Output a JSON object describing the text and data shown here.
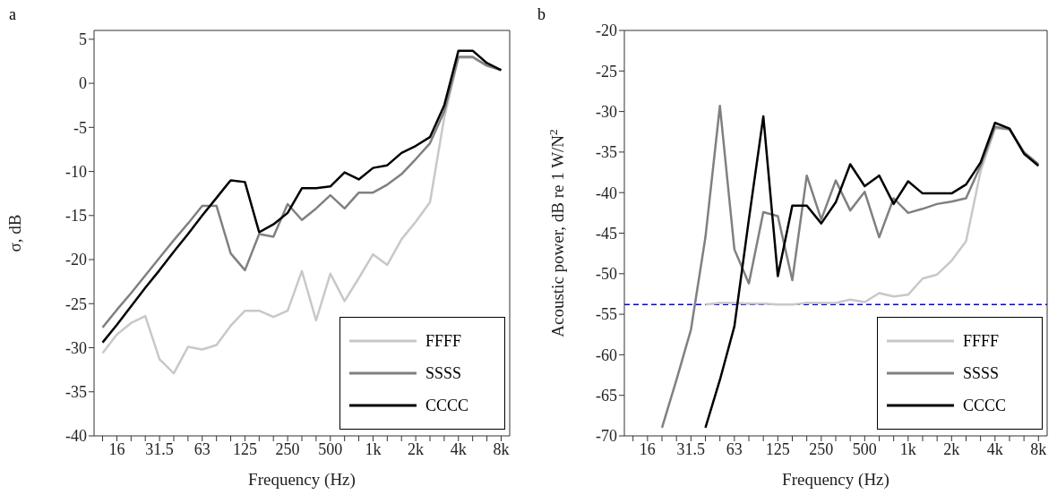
{
  "chart_data": [
    {
      "type": "line",
      "title": "a",
      "xlabel": "Frequency (Hz)",
      "ylabel": "σ, dB",
      "categories": [
        null,
        "16",
        null,
        null,
        "31.5",
        null,
        null,
        "63",
        null,
        null,
        "125",
        null,
        null,
        "250",
        null,
        null,
        "500",
        null,
        null,
        "1k",
        null,
        null,
        "2k",
        null,
        null,
        "4k",
        null,
        null,
        "8k"
      ],
      "ylim": [
        -40,
        6
      ],
      "yticks": [
        -40,
        -35,
        -30,
        -25,
        -20,
        -15,
        -10,
        -5,
        0,
        5
      ],
      "legend": "bottom right",
      "line_style": "solid",
      "marker": "none",
      "series": [
        {
          "name": "FFFF",
          "color": "#c8c8c8",
          "values": [
            -30.6,
            -28.5,
            -27.2,
            -26.4,
            -31.3,
            -32.9,
            -29.9,
            -30.2,
            -29.7,
            -27.5,
            -25.8,
            -25.8,
            -26.5,
            -25.8,
            -21.3,
            -26.9,
            -21.6,
            -24.7,
            -22.1,
            -19.4,
            -20.6,
            -17.7,
            -15.7,
            -13.5,
            -3.9,
            2.9,
            2.9,
            2.0,
            1.5
          ]
        },
        {
          "name": "SSSS",
          "color": "#808080",
          "values": [
            -27.7,
            -25.7,
            -23.8,
            -21.8,
            -19.8,
            -17.8,
            -15.9,
            -13.9,
            -13.9,
            -19.3,
            -21.2,
            -17.1,
            -17.4,
            -13.7,
            -15.5,
            -14.2,
            -12.7,
            -14.2,
            -12.4,
            -12.4,
            -11.5,
            -10.3,
            -8.6,
            -6.8,
            -3.2,
            3.0,
            3.0,
            2.0,
            1.5
          ]
        },
        {
          "name": "CCCC",
          "color": "#000000",
          "values": [
            -29.4,
            -27.4,
            -25.3,
            -23.2,
            -21.2,
            -19.1,
            -17.1,
            -15.0,
            -13.0,
            -11.0,
            -11.2,
            -16.9,
            -16.0,
            -14.7,
            -11.9,
            -11.9,
            -11.7,
            -10.1,
            -10.9,
            -9.6,
            -9.3,
            -7.9,
            -7.1,
            -6.1,
            -2.5,
            3.7,
            3.7,
            2.3,
            1.5
          ]
        }
      ]
    },
    {
      "type": "line",
      "title": "b",
      "xlabel": "Frequency (Hz)",
      "ylabel": "Acoustic power, dB re 1 W/N$^{2}$",
      "categories": [
        null,
        "16",
        null,
        null,
        "31.5",
        null,
        null,
        "63",
        null,
        null,
        "125",
        null,
        null,
        "250",
        null,
        null,
        "500",
        null,
        null,
        "1k",
        null,
        null,
        "2k",
        null,
        null,
        "4k",
        null,
        null,
        "8k"
      ],
      "ylim": [
        -70,
        -20
      ],
      "yticks": [
        -70,
        -65,
        -60,
        -55,
        -50,
        -45,
        -40,
        -35,
        -30,
        -25,
        -20
      ],
      "legend": "bottom right",
      "line_style": "solid",
      "marker": "none",
      "ref_lines": [
        {
          "axis": "y",
          "value": -53.8,
          "color": "#0000ff",
          "line_style": "dashed"
        }
      ],
      "series": [
        {
          "name": "FFFF",
          "color": "#c8c8c8",
          "values": [
            null,
            null,
            null,
            null,
            null,
            -53.8,
            -53.6,
            -53.6,
            -53.7,
            -53.7,
            -53.8,
            -53.8,
            -53.6,
            -53.6,
            -53.6,
            -53.2,
            -53.5,
            -52.4,
            -52.8,
            -52.6,
            -50.6,
            -50.1,
            -48.4,
            -46.0,
            -37.4,
            -32.1,
            -32.2,
            -35.2,
            -36.6
          ]
        },
        {
          "name": "SSSS",
          "color": "#808080",
          "values": [
            null,
            null,
            -69.0,
            -63.1,
            -56.9,
            -45.5,
            -29.3,
            -47.0,
            -51.2,
            -42.4,
            -42.9,
            -50.8,
            -37.9,
            -43.3,
            -38.5,
            -42.2,
            -39.9,
            -45.5,
            -40.7,
            -42.5,
            -42.0,
            -41.4,
            -41.1,
            -40.7,
            -36.7,
            -31.9,
            -32.2,
            -35.0,
            -36.5
          ]
        },
        {
          "name": "CCCC",
          "color": "#000000",
          "values": [
            null,
            null,
            null,
            null,
            null,
            -69.0,
            -63.1,
            -56.5,
            -43.3,
            -30.6,
            -50.3,
            -41.6,
            -41.6,
            -43.8,
            -41.2,
            -36.5,
            -39.2,
            -37.9,
            -41.4,
            -38.6,
            -40.1,
            -40.1,
            -40.1,
            -39.0,
            -36.3,
            -31.4,
            -32.1,
            -35.2,
            -36.7
          ]
        }
      ]
    }
  ]
}
